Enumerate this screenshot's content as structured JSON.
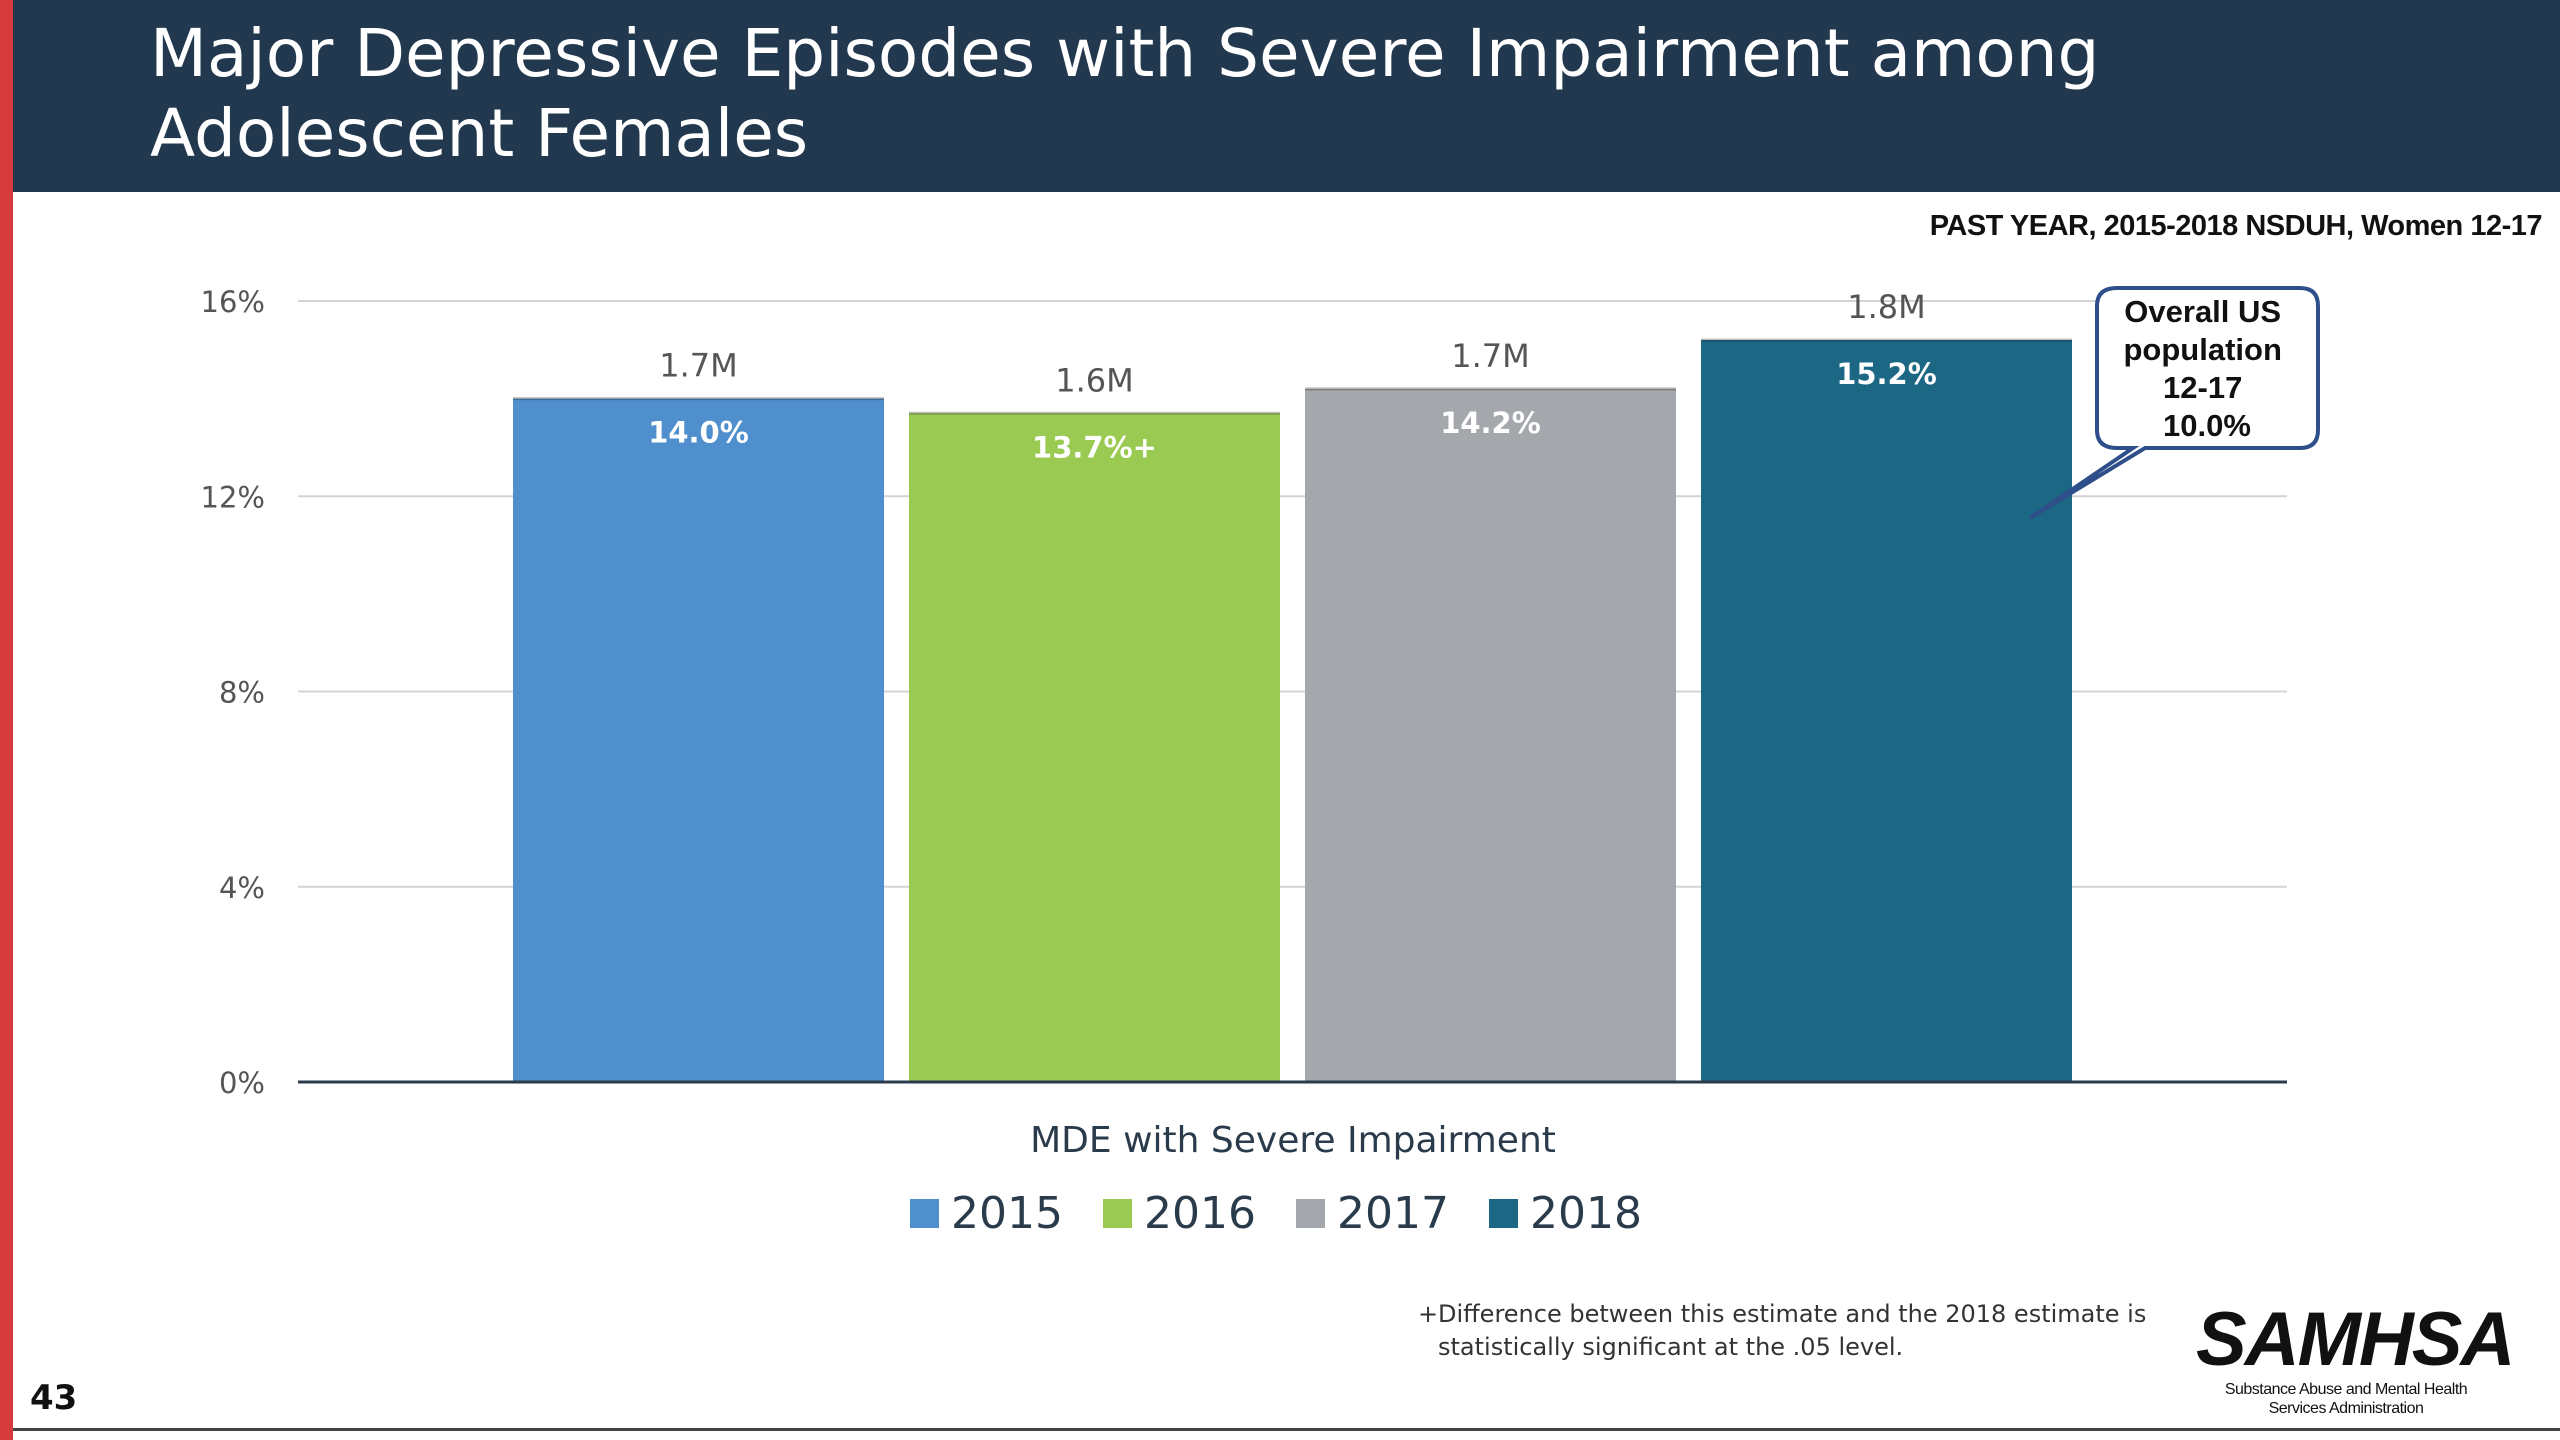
{
  "slide": {
    "title": "Major Depressive Episodes with Severe Impairment among Adolescent Females",
    "subtitle": "PAST YEAR, 2015-2018 NSDUH, Women 12-17",
    "page_number": "43",
    "footnote_mark": "+",
    "footnote": "Difference between this estimate and the 2018 estimate is statistically significant at the .05 level.",
    "logo_word": "SAMHSA",
    "logo_subtitle_line1": "Substance Abuse and Mental Health",
    "logo_subtitle_line2": "Services Administration"
  },
  "callout": {
    "lines": [
      "Overall US",
      "population",
      "12-17",
      "10.0%"
    ]
  },
  "colors": {
    "title_band": "#22384f",
    "accent_bar": "#d63a3a",
    "callout_border": "#2f4f8a"
  },
  "chart_data": {
    "type": "bar",
    "title": "",
    "xlabel": "MDE with Severe Impairment",
    "ylabel": "",
    "ylim": [
      0,
      16
    ],
    "yticks": [
      0,
      4,
      8,
      12,
      16
    ],
    "ytick_labels": [
      "0%",
      "4%",
      "8%",
      "12%",
      "16%"
    ],
    "grid": true,
    "legend_position": "bottom",
    "categories": [
      "MDE with Severe Impairment"
    ],
    "series": [
      {
        "name": "2015",
        "values": [
          14.0
        ],
        "value_label": "14.0%",
        "count_label": "1.7M",
        "color": "#4f8fcd"
      },
      {
        "name": "2016",
        "values": [
          13.7
        ],
        "value_label": "13.7%+",
        "count_label": "1.6M",
        "color": "#9aca52"
      },
      {
        "name": "2017",
        "values": [
          14.2
        ],
        "value_label": "14.2%",
        "count_label": "1.7M",
        "color": "#a4a7ab"
      },
      {
        "name": "2018",
        "values": [
          15.2
        ],
        "value_label": "15.2%",
        "count_label": "1.8M",
        "color": "#1c6784"
      }
    ]
  }
}
